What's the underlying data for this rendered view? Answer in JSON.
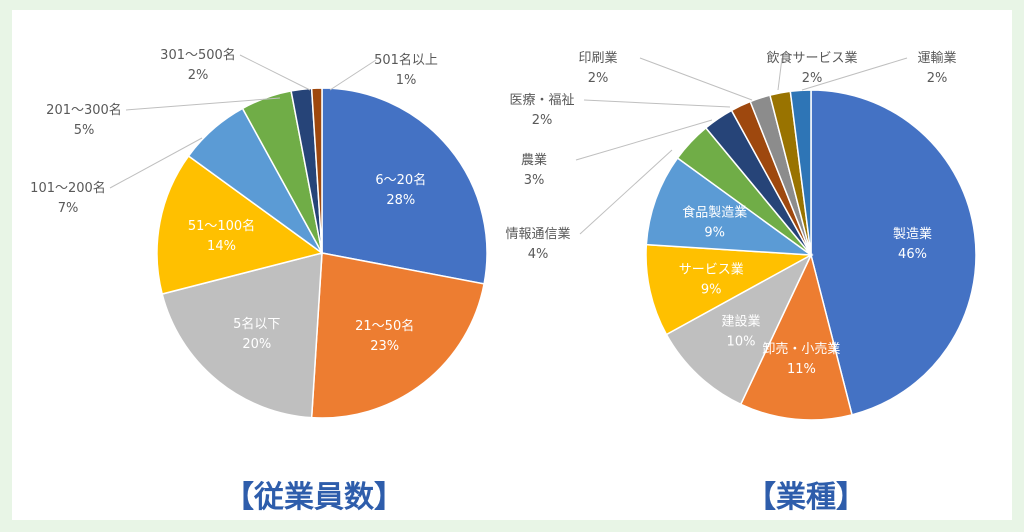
{
  "chart_data": [
    {
      "type": "pie",
      "title": "【従業員数】",
      "start_angle_deg": 0,
      "direction": "clockwise",
      "series": [
        {
          "label": "6～20名",
          "percent": 28,
          "value_label": "28%",
          "color": "#4472c4",
          "label_inside": true
        },
        {
          "label": "21～50名",
          "percent": 23,
          "value_label": "23%",
          "color": "#ed7d31",
          "label_inside": true
        },
        {
          "label": "5名以下",
          "percent": 20,
          "value_label": "20%",
          "color": "#bfbfbf",
          "label_inside": true
        },
        {
          "label": "51～100名",
          "percent": 14,
          "value_label": "14%",
          "color": "#ffc000",
          "label_inside": true
        },
        {
          "label": "101～200名",
          "percent": 7,
          "value_label": "7%",
          "color": "#5b9bd5",
          "label_inside": false
        },
        {
          "label": "201～300名",
          "percent": 5,
          "value_label": "5%",
          "color": "#70ad47",
          "label_inside": false
        },
        {
          "label": "301～500名",
          "percent": 2,
          "value_label": "2%",
          "color": "#264478",
          "label_inside": false
        },
        {
          "label": "501名以上",
          "percent": 1,
          "value_label": "1%",
          "color": "#9e480e",
          "label_inside": false
        }
      ]
    },
    {
      "type": "pie",
      "title": "【業種】",
      "start_angle_deg": 0,
      "direction": "clockwise",
      "series": [
        {
          "label": "製造業",
          "percent": 46,
          "value_label": "46%",
          "color": "#4472c4",
          "label_inside": true
        },
        {
          "label": "卸売・小売業",
          "percent": 11,
          "value_label": "11%",
          "color": "#ed7d31",
          "label_inside": true
        },
        {
          "label": "建設業",
          "percent": 10,
          "value_label": "10%",
          "color": "#bfbfbf",
          "label_inside": true
        },
        {
          "label": "サービス業",
          "percent": 9,
          "value_label": "9%",
          "color": "#ffc000",
          "label_inside": true
        },
        {
          "label": "食品製造業",
          "percent": 9,
          "value_label": "9%",
          "color": "#5b9bd5",
          "label_inside": true
        },
        {
          "label": "情報通信業",
          "percent": 4,
          "value_label": "4%",
          "color": "#70ad47",
          "label_inside": false
        },
        {
          "label": "農業",
          "percent": 3,
          "value_label": "3%",
          "color": "#264478",
          "label_inside": false
        },
        {
          "label": "医療・福祉",
          "percent": 2,
          "value_label": "2%",
          "color": "#9e480e",
          "label_inside": false
        },
        {
          "label": "印刷業",
          "percent": 2,
          "value_label": "2%",
          "color": "#8c8c8c",
          "label_inside": false
        },
        {
          "label": "飲食サービス業",
          "percent": 2,
          "value_label": "2%",
          "color": "#997300",
          "label_inside": false
        },
        {
          "label": "運輸業",
          "percent": 2,
          "value_label": "2%",
          "color": "#2e75b6",
          "label_inside": false
        }
      ]
    }
  ]
}
